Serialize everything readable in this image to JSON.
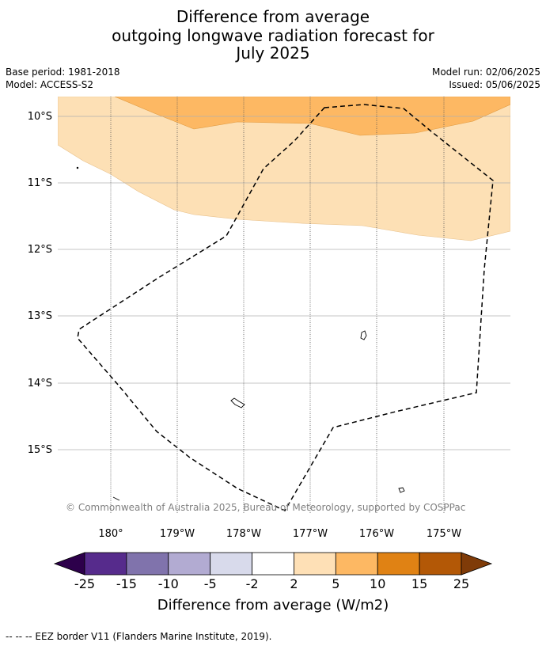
{
  "title": {
    "line1": "Difference from average",
    "line2": "outgoing longwave radiation forecast for",
    "line3": "July 2025"
  },
  "meta": {
    "base_period": "Base period: 1981-2018",
    "model": "Model: ACCESS-S2",
    "model_run": "Model run: 02/06/2025",
    "issued": "Issued: 05/06/2025"
  },
  "map": {
    "lat_labels": [
      "10°S",
      "11°S",
      "12°S",
      "13°S",
      "14°S",
      "15°S"
    ],
    "lon_labels": [
      "180°",
      "179°W",
      "178°W",
      "177°W",
      "176°W",
      "175°W"
    ],
    "copyright": "© Commonwealth of Australia 2025, Bureau of Meteorology, supported by COSPPac",
    "colors": {
      "band_2_5": "#fde0b5",
      "band_5_10": "#fdb863",
      "grid": "#b0b0b0",
      "eez_border": "#000000"
    }
  },
  "colorbar": {
    "title": "Difference from average (W/m2)",
    "tick_labels": [
      "-25",
      "-15",
      "-10",
      "-5",
      "-2",
      "2",
      "5",
      "10",
      "15",
      "25"
    ],
    "segment_colors": [
      "#562b8c",
      "#8073ac",
      "#b2abd2",
      "#d8daeb",
      "#ffffff",
      "#fee0b6",
      "#fdb863",
      "#e08214",
      "#b35806"
    ],
    "under_color": "#2d004b",
    "over_color": "#7f3b08"
  },
  "footer": {
    "legend": "--  --  -- EEZ border V11 (Flanders Marine Institute, 2019)."
  }
}
